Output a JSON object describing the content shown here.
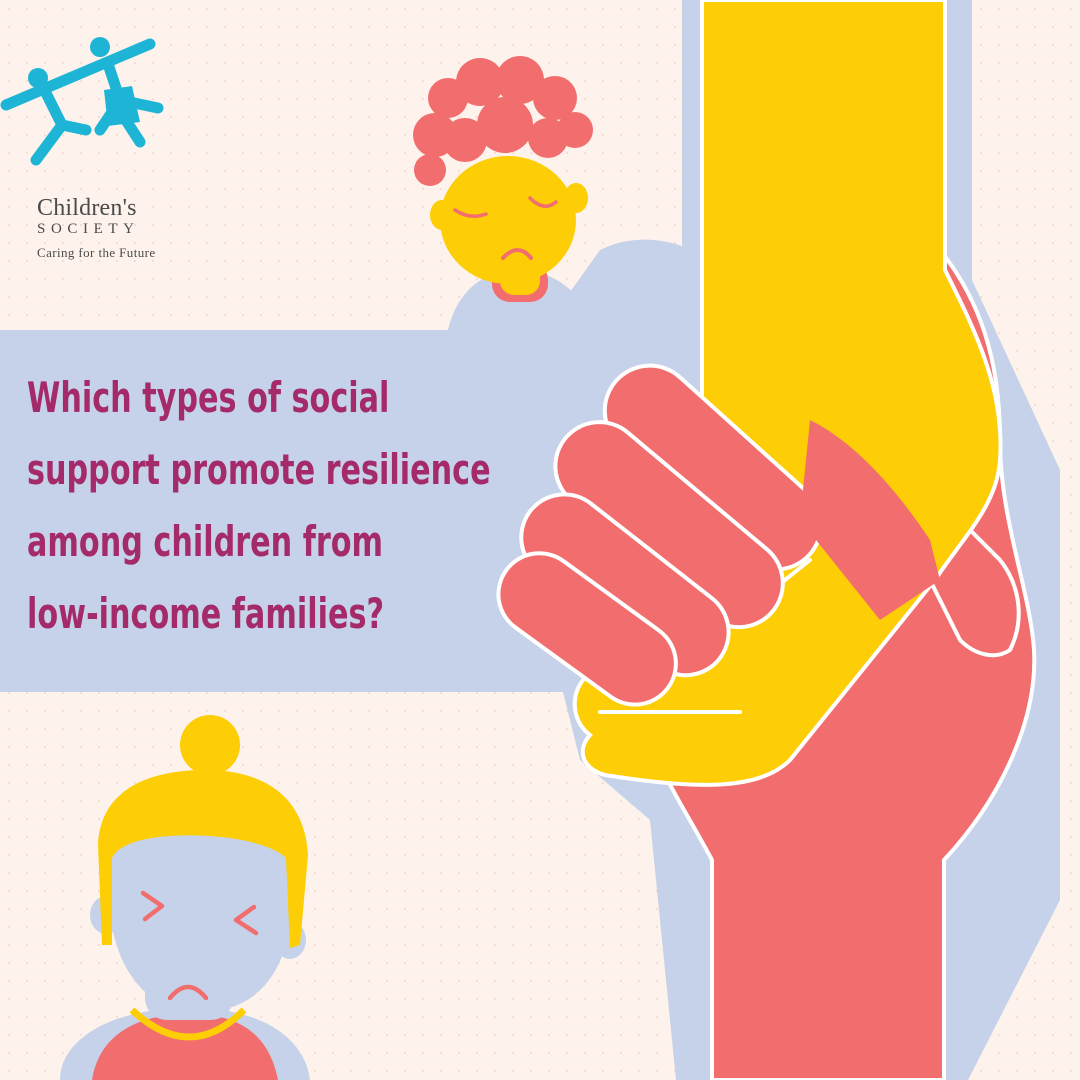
{
  "brand": {
    "name_line1": "Children's",
    "name_line2": "SOCIETY",
    "tagline": "Caring for the Future",
    "logo_color": "#1eb4d6"
  },
  "headline": {
    "lines": [
      "Which types of social",
      "support promote resilience",
      "among children from",
      "low-income families?"
    ]
  },
  "icons": [
    "children-society-logo-icon",
    "sad-boy-icon",
    "crying-girl-icon",
    "adult-hand-icon",
    "child-hand-icon"
  ],
  "colors": {
    "background": "#fdf3ec",
    "panel": "#c5d2ea",
    "headline": "#a42a6a",
    "coral": "#f26d6d",
    "yellow": "#fdcd06",
    "logo": "#1eb4d6"
  }
}
